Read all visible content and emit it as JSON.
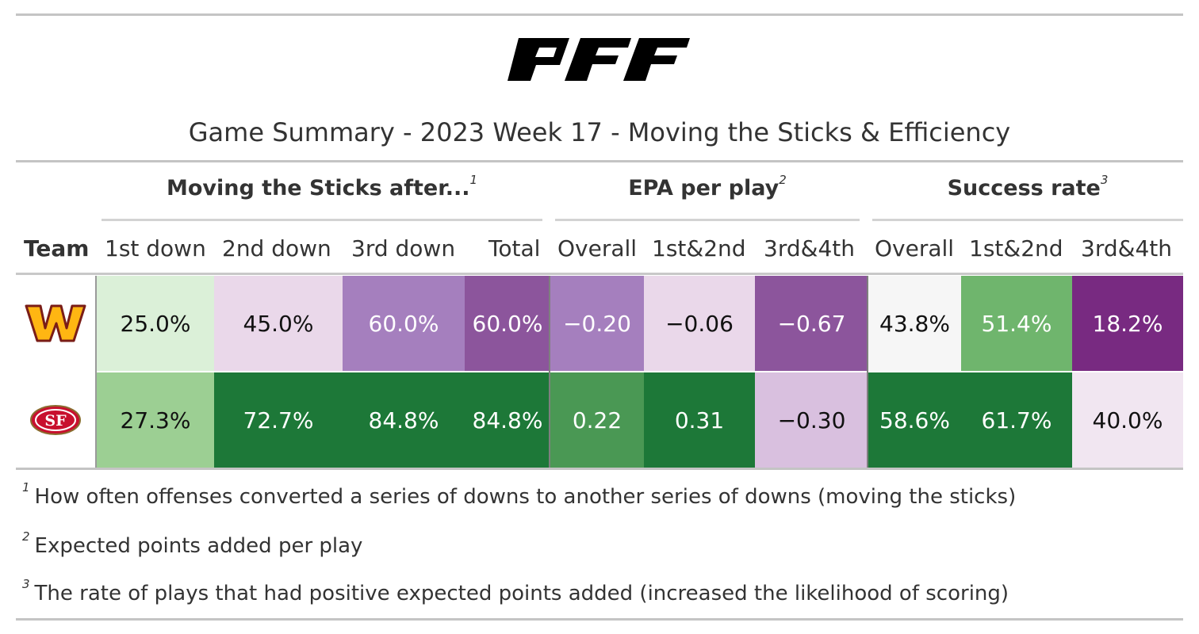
{
  "title": "Game Summary - 2023 Week 17 - Moving the Sticks & Efficiency",
  "logo_text": "PFF",
  "spanners": [
    {
      "label": "Moving the Sticks after...",
      "mark": "1"
    },
    {
      "label": "EPA per play",
      "mark": "2"
    },
    {
      "label": "Success rate",
      "mark": "3"
    }
  ],
  "columns": [
    "Team",
    "1st down",
    "2nd down",
    "3rd down",
    "Total",
    "Overall",
    "1st&2nd",
    "3rd&4th",
    "Overall",
    "1st&2nd",
    "3rd&4th"
  ],
  "rows": [
    {
      "team": "Washington Commanders",
      "logo_icon": "commanders-w-logo",
      "cells": [
        {
          "text": "25.0%",
          "bg": "#dbf0d8",
          "fg": "#111111"
        },
        {
          "text": "45.0%",
          "bg": "#ead8ea",
          "fg": "#111111"
        },
        {
          "text": "60.0%",
          "bg": "#a57fbe",
          "fg": "#ffffff"
        },
        {
          "text": "60.0%",
          "bg": "#8c559c",
          "fg": "#ffffff"
        },
        {
          "text": "−0.20",
          "bg": "#a57fbe",
          "fg": "#ffffff"
        },
        {
          "text": "−0.06",
          "bg": "#ead8ea",
          "fg": "#111111"
        },
        {
          "text": "−0.67",
          "bg": "#8c559c",
          "fg": "#ffffff"
        },
        {
          "text": "43.8%",
          "bg": "#f6f6f6",
          "fg": "#111111"
        },
        {
          "text": "51.4%",
          "bg": "#6fb56d",
          "fg": "#ffffff"
        },
        {
          "text": "18.2%",
          "bg": "#782a81",
          "fg": "#ffffff"
        }
      ]
    },
    {
      "team": "San Francisco 49ers",
      "logo_icon": "49ers-sf-logo",
      "cells": [
        {
          "text": "27.3%",
          "bg": "#9ccf93",
          "fg": "#111111"
        },
        {
          "text": "72.7%",
          "bg": "#1d7838",
          "fg": "#ffffff"
        },
        {
          "text": "84.8%",
          "bg": "#1d7838",
          "fg": "#ffffff"
        },
        {
          "text": "84.8%",
          "bg": "#1d7838",
          "fg": "#ffffff"
        },
        {
          "text": "0.22",
          "bg": "#4a9854",
          "fg": "#ffffff"
        },
        {
          "text": "0.31",
          "bg": "#1d7838",
          "fg": "#ffffff"
        },
        {
          "text": "−0.30",
          "bg": "#d9c0df",
          "fg": "#111111"
        },
        {
          "text": "58.6%",
          "bg": "#1d7838",
          "fg": "#ffffff"
        },
        {
          "text": "61.7%",
          "bg": "#1d7838",
          "fg": "#ffffff"
        },
        {
          "text": "40.0%",
          "bg": "#f1e6f1",
          "fg": "#111111"
        }
      ]
    }
  ],
  "footnotes": [
    {
      "mark": "1",
      "text": "How often offenses converted a series of downs to another series of downs (moving the sticks)"
    },
    {
      "mark": "2",
      "text": "Expected points added per play"
    },
    {
      "mark": "3",
      "text": "The rate of plays that had positive expected points added (increased the likelihood of scoring)"
    }
  ],
  "chart_data": {
    "type": "table",
    "title": "Game Summary - 2023 Week 17 - Moving the Sticks & Efficiency",
    "column_groups": [
      {
        "name": "Moving the Sticks after...",
        "columns": [
          "1st down",
          "2nd down",
          "3rd down",
          "Total"
        ]
      },
      {
        "name": "EPA per play",
        "columns": [
          "Overall",
          "1st&2nd",
          "3rd&4th"
        ]
      },
      {
        "name": "Success rate",
        "columns": [
          "Overall",
          "1st&2nd",
          "3rd&4th"
        ]
      }
    ],
    "rows": [
      {
        "team": "Washington Commanders",
        "values": [
          "25.0%",
          "45.0%",
          "60.0%",
          "60.0%",
          "−0.20",
          "−0.06",
          "−0.67",
          "43.8%",
          "51.4%",
          "18.2%"
        ]
      },
      {
        "team": "San Francisco 49ers",
        "values": [
          "27.3%",
          "72.7%",
          "84.8%",
          "84.8%",
          "0.22",
          "0.31",
          "−0.30",
          "58.6%",
          "61.7%",
          "40.0%"
        ]
      }
    ]
  }
}
